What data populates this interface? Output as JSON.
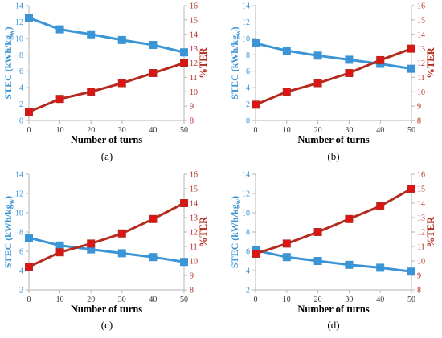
{
  "colors": {
    "stec": "#3a94d6",
    "ter": "#b52a1e",
    "ter_marker": "#dd1414",
    "axis": "#b5b5b5"
  },
  "chart_data": [
    {
      "type": "line",
      "caption": "(a)",
      "xlabel": "Number of turns",
      "ylabel_left": "STEC (kWh/kg",
      "ylabel_left_sub": "w",
      "ylabel_left_close": ")",
      "ylabel_right": "%TER",
      "x": [
        0,
        10,
        20,
        30,
        40,
        50
      ],
      "xlim": [
        0,
        50
      ],
      "ylim_left": [
        0,
        14
      ],
      "ylim_right": [
        8,
        16
      ],
      "x_ticks": [
        "0",
        "10",
        "20",
        "30",
        "40",
        "50"
      ],
      "y_ticks_left": [
        "0",
        "2",
        "4",
        "6",
        "8",
        "10",
        "12",
        "14"
      ],
      "y_ticks_right": [
        "8",
        "9",
        "10",
        "11",
        "12",
        "13",
        "14",
        "15",
        "16"
      ],
      "series": [
        {
          "axis": "left",
          "values": [
            12.5,
            11.1,
            10.5,
            9.8,
            9.2,
            8.3
          ]
        },
        {
          "axis": "right",
          "values": [
            8.6,
            9.5,
            10.0,
            10.6,
            11.3,
            12.0
          ]
        }
      ]
    },
    {
      "type": "line",
      "caption": "(b)",
      "xlabel": "Number of turns",
      "ylabel_left": "STEC (kWh/kg",
      "ylabel_left_sub": "w",
      "ylabel_left_close": ")",
      "ylabel_right": "%TER",
      "x": [
        0,
        10,
        20,
        30,
        40,
        50
      ],
      "xlim": [
        0,
        50
      ],
      "ylim_left": [
        0,
        14
      ],
      "ylim_right": [
        8,
        16
      ],
      "x_ticks": [
        "0",
        "10",
        "20",
        "30",
        "40",
        "50"
      ],
      "y_ticks_left": [
        "0",
        "2",
        "4",
        "6",
        "8",
        "10",
        "12",
        "14"
      ],
      "y_ticks_right": [
        "8",
        "9",
        "10",
        "11",
        "12",
        "13",
        "14",
        "15",
        "16"
      ],
      "series": [
        {
          "axis": "left",
          "values": [
            9.4,
            8.5,
            7.9,
            7.4,
            6.9,
            6.3
          ]
        },
        {
          "axis": "right",
          "values": [
            9.1,
            10.0,
            10.6,
            11.3,
            12.2,
            13.0
          ]
        }
      ]
    },
    {
      "type": "line",
      "caption": "(c)",
      "xlabel": "Number of turns",
      "ylabel_left": "STEC (kWh/kg",
      "ylabel_left_sub": "w",
      "ylabel_left_close": ")",
      "ylabel_right": "%TER",
      "x": [
        0,
        10,
        20,
        30,
        40,
        50
      ],
      "xlim": [
        0,
        50
      ],
      "ylim_left": [
        2,
        14
      ],
      "ylim_right": [
        8,
        16
      ],
      "x_ticks": [
        "0",
        "10",
        "20",
        "30",
        "40",
        "50"
      ],
      "y_ticks_left": [
        "2",
        "4",
        "6",
        "8",
        "10",
        "12",
        "14"
      ],
      "y_ticks_right": [
        "8",
        "9",
        "10",
        "11",
        "12",
        "13",
        "14",
        "15",
        "16"
      ],
      "series": [
        {
          "axis": "left",
          "values": [
            7.4,
            6.6,
            6.2,
            5.8,
            5.4,
            4.9
          ]
        },
        {
          "axis": "right",
          "values": [
            9.6,
            10.6,
            11.2,
            11.9,
            12.9,
            14.0
          ]
        }
      ]
    },
    {
      "type": "line",
      "caption": "(d)",
      "xlabel": "Number of turns",
      "ylabel_left": "STEC (kWh/kg",
      "ylabel_left_sub": "w",
      "ylabel_left_close": ")",
      "ylabel_right": "%TER",
      "x": [
        0,
        10,
        20,
        30,
        40,
        50
      ],
      "xlim": [
        0,
        50
      ],
      "ylim_left": [
        2,
        14
      ],
      "ylim_right": [
        8,
        16
      ],
      "x_ticks": [
        "0",
        "10",
        "20",
        "30",
        "40",
        "50"
      ],
      "y_ticks_left": [
        "2",
        "4",
        "6",
        "8",
        "10",
        "12",
        "14"
      ],
      "y_ticks_right": [
        "8",
        "9",
        "10",
        "11",
        "12",
        "13",
        "14",
        "15",
        "16"
      ],
      "series": [
        {
          "axis": "left",
          "values": [
            6.1,
            5.4,
            5.0,
            4.6,
            4.3,
            3.9
          ]
        },
        {
          "axis": "right",
          "values": [
            10.5,
            11.2,
            12.0,
            12.9,
            13.8,
            15.0
          ]
        }
      ]
    }
  ]
}
